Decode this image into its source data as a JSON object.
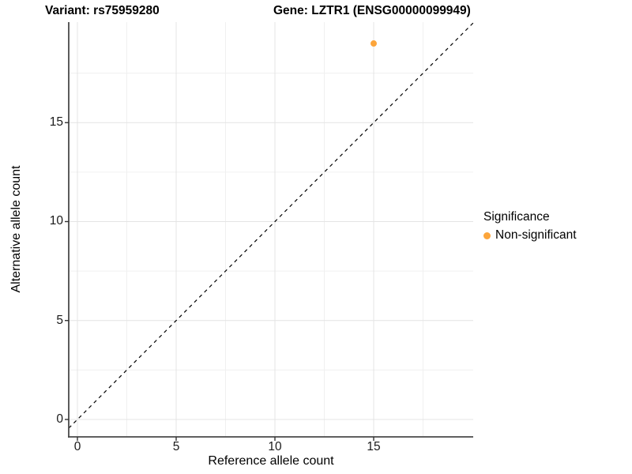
{
  "chart_data": {
    "type": "scatter",
    "title_left": "Variant: rs75959280",
    "title_right": "Gene: LZTR1 (ENSG00000099949)",
    "xlabel": "Reference allele count",
    "ylabel": "Alternative allele count",
    "xlim": [
      -0.44,
      20.04
    ],
    "ylim": [
      -0.88,
      20.08
    ],
    "x_ticks": [
      0,
      5,
      10,
      15
    ],
    "y_ticks": [
      0,
      5,
      10,
      15
    ],
    "x_minor_ticks": [
      2.5,
      7.5,
      12.5,
      17.5
    ],
    "y_minor_ticks": [
      2.5,
      7.5,
      12.5,
      17.5
    ],
    "grid": true,
    "series": [
      {
        "name": "Non-significant",
        "color": "#FCA53B",
        "points": [
          {
            "x": 15,
            "y": 19
          }
        ]
      }
    ],
    "reference_line": {
      "slope": 1,
      "intercept": 0,
      "style": "dashed",
      "color": "#000000"
    },
    "legend": {
      "title": "Significance",
      "position": "right",
      "entries": [
        {
          "label": "Non-significant",
          "color": "#FCA53B"
        }
      ]
    }
  }
}
